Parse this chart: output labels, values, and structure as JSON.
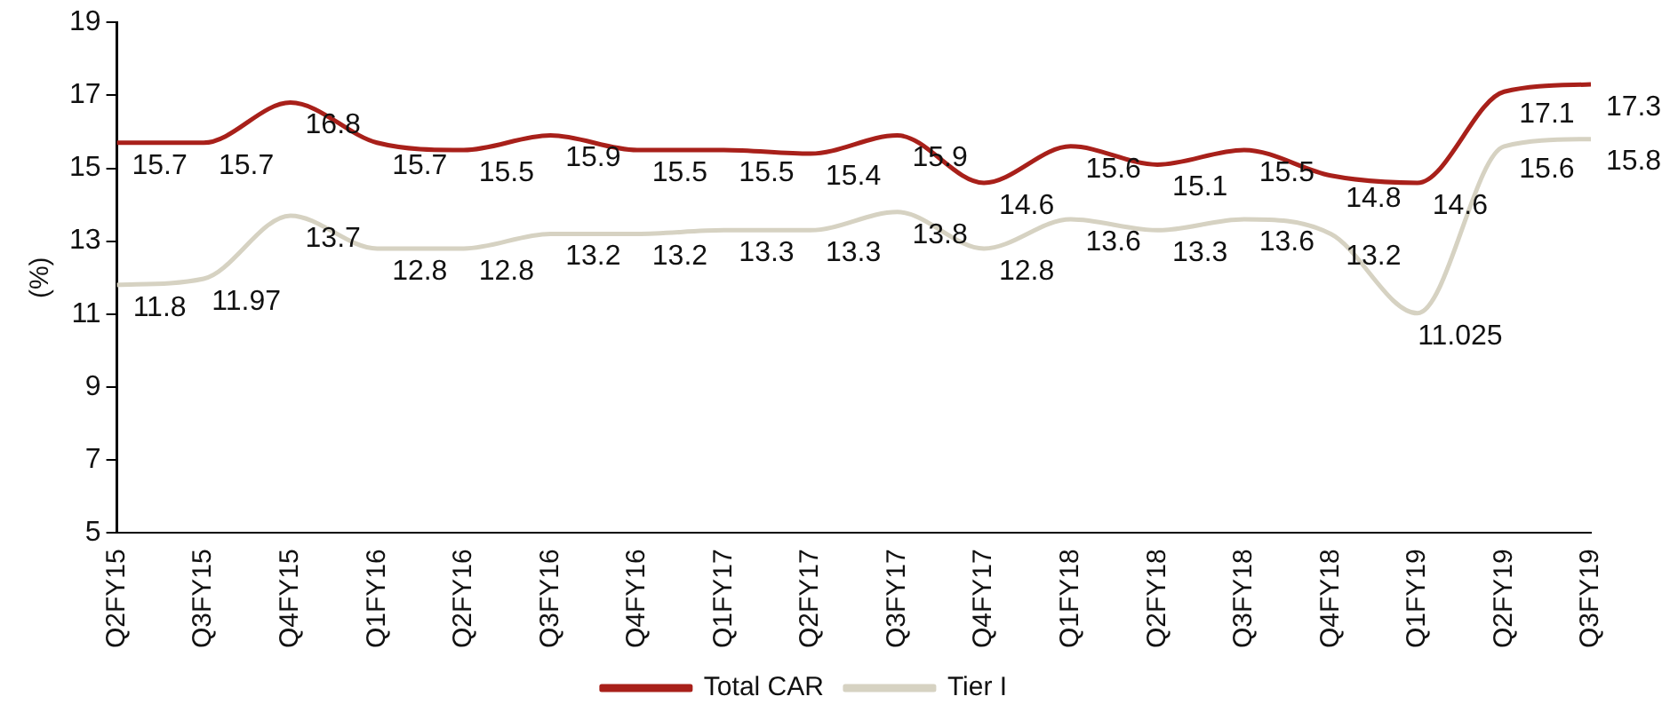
{
  "chart_data": {
    "type": "line",
    "ylabel": "(%)",
    "categories": [
      "Q2FY15",
      "Q3FY15",
      "Q4FY15",
      "Q1FY16",
      "Q2FY16",
      "Q3FY16",
      "Q4FY16",
      "Q1FY17",
      "Q2FY17",
      "Q3FY17",
      "Q4FY17",
      "Q1FY18",
      "Q2FY18",
      "Q3FY18",
      "Q4FY18",
      "Q1FY19",
      "Q2FY19",
      "Q3FY19"
    ],
    "series": [
      {
        "name": "Total CAR",
        "color": "#a8201a",
        "values": [
          15.7,
          15.7,
          16.8,
          15.7,
          15.5,
          15.9,
          15.5,
          15.5,
          15.4,
          15.9,
          14.6,
          15.6,
          15.1,
          15.5,
          14.8,
          14.6,
          17.1,
          17.3
        ]
      },
      {
        "name": "Tier I",
        "color": "#d6d2c2",
        "values": [
          11.8,
          11.97,
          13.7,
          12.8,
          12.8,
          13.2,
          13.2,
          13.3,
          13.3,
          13.8,
          12.8,
          13.6,
          13.3,
          13.6,
          13.2,
          11.025,
          15.6,
          15.8
        ]
      }
    ],
    "ylim": [
      5,
      19
    ],
    "yticks": [
      5,
      7,
      9,
      11,
      13,
      15,
      17,
      19
    ],
    "grid": false,
    "legend": "bottom",
    "marker": "none",
    "line_style": "solid",
    "data_labels": true
  }
}
